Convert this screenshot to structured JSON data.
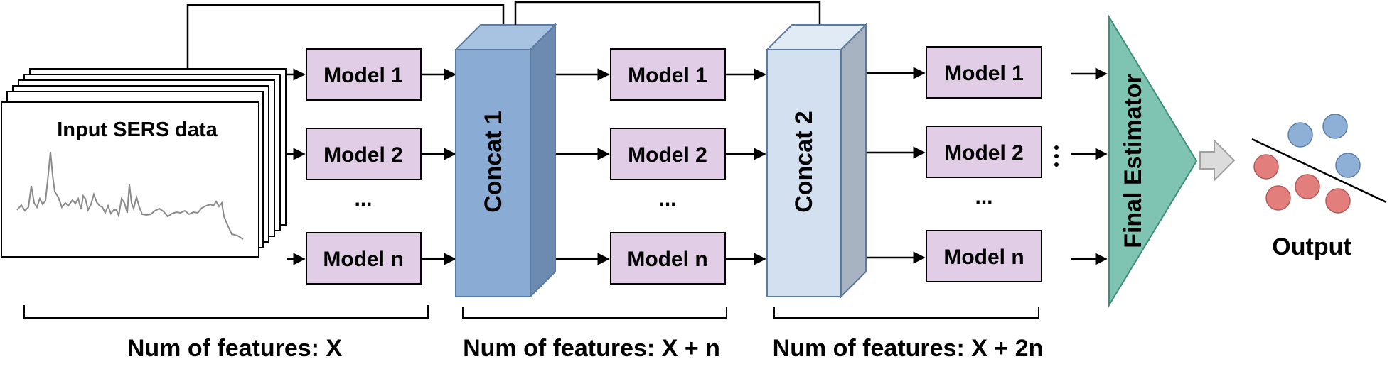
{
  "input": {
    "title": "Input SERS data"
  },
  "stage1": {
    "models": [
      "Model 1",
      "Model 2",
      "Model n"
    ],
    "ellipsis": "..."
  },
  "concat1": {
    "label": "Concat 1"
  },
  "stage2": {
    "models": [
      "Model 1",
      "Model 2",
      "Model n"
    ],
    "ellipsis": "..."
  },
  "concat2": {
    "label": "Concat 2"
  },
  "stage3": {
    "models": [
      "Model 1",
      "Model 2",
      "Model n"
    ],
    "ellipsis": "...",
    "side_ellipsis": "..."
  },
  "final": {
    "label": "Final Estimator"
  },
  "output": {
    "label": "Output"
  },
  "features": {
    "stage1": "Num of features: X",
    "stage2": "Num of features: X + n",
    "stage3": "Num of features: X + 2n"
  },
  "colors": {
    "model_fill": "#e1cde6",
    "concat1_front": "#8aabd3",
    "concat1_side": "#6d8bb0",
    "concat1_top": "#a8c3e2",
    "concat2_front": "#d3e0ef",
    "concat2_side": "#a7b3c1",
    "concat2_top": "#e1ebf5",
    "final_fill": "#7fc4b2",
    "point_blue": "#8fb0d6",
    "point_red": "#e27f7c"
  }
}
